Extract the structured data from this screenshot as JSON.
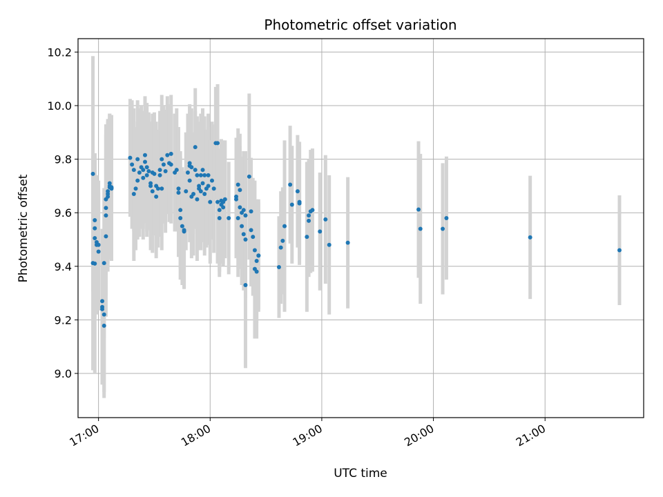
{
  "chart_data": {
    "type": "scatter",
    "title": "Photometric offset variation",
    "xlabel": "UTC time",
    "ylabel": "Photometric offset",
    "x_ticks": [
      "17:00",
      "18:00",
      "19:00",
      "20:00",
      "21:00"
    ],
    "y_ticks": [
      "9.0",
      "9.2",
      "9.4",
      "9.6",
      "9.8",
      "10.0",
      "10.2"
    ],
    "xlim": [
      "16:49",
      "21:53"
    ],
    "ylim": [
      8.835,
      10.25
    ],
    "grid": true,
    "colors": {
      "point": "#1f77b4",
      "errorbar": "#d3d3d3",
      "grid": "#b0b0b0"
    },
    "points": [
      {
        "t": "16:57",
        "y": 9.745,
        "e": 0.44
      },
      {
        "t": "16:57",
        "y": 9.412,
        "e": 0.4
      },
      {
        "t": "16:58",
        "y": 9.41,
        "e": 0.41
      },
      {
        "t": "16:58",
        "y": 9.542,
        "e": 0.28
      },
      {
        "t": "16:58",
        "y": 9.572,
        "e": 0.25
      },
      {
        "t": "16:58",
        "y": 9.505,
        "e": 0.3
      },
      {
        "t": "16:59",
        "y": 9.48,
        "e": 0.26
      },
      {
        "t": "16:59",
        "y": 9.49,
        "e": 0.25
      },
      {
        "t": "17:00",
        "y": 9.48,
        "e": 0.24
      },
      {
        "t": "17:00",
        "y": 9.455,
        "e": 0.22
      },
      {
        "t": "17:02",
        "y": 9.27,
        "e": 0.27
      },
      {
        "t": "17:02",
        "y": 9.24,
        "e": 0.28
      },
      {
        "t": "17:02",
        "y": 9.248,
        "e": 0.29
      },
      {
        "t": "17:03",
        "y": 9.22,
        "e": 0.29
      },
      {
        "t": "17:03",
        "y": 9.178,
        "e": 0.27
      },
      {
        "t": "17:03",
        "y": 9.412,
        "e": 0.28
      },
      {
        "t": "17:04",
        "y": 9.512,
        "e": 0.3
      },
      {
        "t": "17:04",
        "y": 9.59,
        "e": 0.3
      },
      {
        "t": "17:04",
        "y": 9.618,
        "e": 0.29
      },
      {
        "t": "17:04",
        "y": 9.65,
        "e": 0.28
      },
      {
        "t": "17:05",
        "y": 9.66,
        "e": 0.28
      },
      {
        "t": "17:05",
        "y": 9.67,
        "e": 0.27
      },
      {
        "t": "17:05",
        "y": 9.68,
        "e": 0.27
      },
      {
        "t": "17:06",
        "y": 9.695,
        "e": 0.27
      },
      {
        "t": "17:06",
        "y": 9.7,
        "e": 0.27
      },
      {
        "t": "17:06",
        "y": 9.71,
        "e": 0.26
      },
      {
        "t": "17:07",
        "y": 9.695,
        "e": 0.27
      },
      {
        "t": "17:07",
        "y": 9.69,
        "e": 0.27
      },
      {
        "t": "17:17",
        "y": 9.805,
        "e": 0.22
      },
      {
        "t": "17:18",
        "y": 9.78,
        "e": 0.24
      },
      {
        "t": "17:19",
        "y": 9.76,
        "e": 0.23
      },
      {
        "t": "17:19",
        "y": 9.67,
        "e": 0.25
      },
      {
        "t": "17:20",
        "y": 9.69,
        "e": 0.23
      },
      {
        "t": "17:21",
        "y": 9.8,
        "e": 0.22
      },
      {
        "t": "17:21",
        "y": 9.72,
        "e": 0.22
      },
      {
        "t": "17:22",
        "y": 9.75,
        "e": 0.24
      },
      {
        "t": "17:23",
        "y": 9.77,
        "e": 0.23
      },
      {
        "t": "17:24",
        "y": 9.76,
        "e": 0.22
      },
      {
        "t": "17:24",
        "y": 9.73,
        "e": 0.23
      },
      {
        "t": "17:25",
        "y": 9.815,
        "e": 0.22
      },
      {
        "t": "17:25",
        "y": 9.79,
        "e": 0.23
      },
      {
        "t": "17:26",
        "y": 9.77,
        "e": 0.24
      },
      {
        "t": "17:26",
        "y": 9.74,
        "e": 0.23
      },
      {
        "t": "17:27",
        "y": 9.755,
        "e": 0.22
      },
      {
        "t": "17:28",
        "y": 9.71,
        "e": 0.23
      },
      {
        "t": "17:28",
        "y": 9.7,
        "e": 0.24
      },
      {
        "t": "17:29",
        "y": 9.68,
        "e": 0.23
      },
      {
        "t": "17:29",
        "y": 9.75,
        "e": 0.22
      },
      {
        "t": "17:30",
        "y": 9.745,
        "e": 0.23
      },
      {
        "t": "17:31",
        "y": 9.7,
        "e": 0.24
      },
      {
        "t": "17:31",
        "y": 9.66,
        "e": 0.23
      },
      {
        "t": "17:32",
        "y": 9.69,
        "e": 0.22
      },
      {
        "t": "17:33",
        "y": 9.74,
        "e": 0.23
      },
      {
        "t": "17:33",
        "y": 9.76,
        "e": 0.22
      },
      {
        "t": "17:34",
        "y": 9.8,
        "e": 0.24
      },
      {
        "t": "17:34",
        "y": 9.69,
        "e": 0.23
      },
      {
        "t": "17:35",
        "y": 9.78,
        "e": 0.22
      },
      {
        "t": "17:36",
        "y": 9.755,
        "e": 0.23
      },
      {
        "t": "17:37",
        "y": 9.815,
        "e": 0.22
      },
      {
        "t": "17:38",
        "y": 9.785,
        "e": 0.22
      },
      {
        "t": "17:39",
        "y": 9.78,
        "e": 0.22
      },
      {
        "t": "17:39",
        "y": 9.82,
        "e": 0.22
      },
      {
        "t": "17:41",
        "y": 9.75,
        "e": 0.22
      },
      {
        "t": "17:42",
        "y": 9.76,
        "e": 0.23
      },
      {
        "t": "17:43",
        "y": 9.675,
        "e": 0.24
      },
      {
        "t": "17:43",
        "y": 9.69,
        "e": 0.23
      },
      {
        "t": "17:44",
        "y": 9.61,
        "e": 0.22
      },
      {
        "t": "17:44",
        "y": 9.58,
        "e": 0.23
      },
      {
        "t": "17:45",
        "y": 9.55,
        "e": 0.22
      },
      {
        "t": "17:46",
        "y": 9.53,
        "e": 0.21
      },
      {
        "t": "17:46",
        "y": 9.535,
        "e": 0.22
      },
      {
        "t": "17:47",
        "y": 9.68,
        "e": 0.22
      },
      {
        "t": "17:48",
        "y": 9.75,
        "e": 0.22
      },
      {
        "t": "17:49",
        "y": 9.775,
        "e": 0.22
      },
      {
        "t": "17:49",
        "y": 9.785,
        "e": 0.22
      },
      {
        "t": "17:49",
        "y": 9.72,
        "e": 0.23
      },
      {
        "t": "17:50",
        "y": 9.77,
        "e": 0.22
      },
      {
        "t": "17:50",
        "y": 9.66,
        "e": 0.23
      },
      {
        "t": "17:51",
        "y": 9.67,
        "e": 0.23
      },
      {
        "t": "17:52",
        "y": 9.76,
        "e": 0.22
      },
      {
        "t": "17:52",
        "y": 9.845,
        "e": 0.22
      },
      {
        "t": "17:53",
        "y": 9.74,
        "e": 0.22
      },
      {
        "t": "17:53",
        "y": 9.65,
        "e": 0.23
      },
      {
        "t": "17:54",
        "y": 9.7,
        "e": 0.24
      },
      {
        "t": "17:54",
        "y": 9.69,
        "e": 0.23
      },
      {
        "t": "17:55",
        "y": 9.74,
        "e": 0.23
      },
      {
        "t": "17:55",
        "y": 9.68,
        "e": 0.22
      },
      {
        "t": "17:56",
        "y": 9.76,
        "e": 0.23
      },
      {
        "t": "17:56",
        "y": 9.71,
        "e": 0.22
      },
      {
        "t": "17:57",
        "y": 9.74,
        "e": 0.22
      },
      {
        "t": "17:57",
        "y": 9.67,
        "e": 0.23
      },
      {
        "t": "17:58",
        "y": 9.69,
        "e": 0.22
      },
      {
        "t": "17:59",
        "y": 9.74,
        "e": 0.23
      },
      {
        "t": "17:59",
        "y": 9.7,
        "e": 0.22
      },
      {
        "t": "18:00",
        "y": 9.64,
        "e": 0.23
      },
      {
        "t": "18:01",
        "y": 9.72,
        "e": 0.22
      },
      {
        "t": "18:02",
        "y": 9.69,
        "e": 0.24
      },
      {
        "t": "18:03",
        "y": 9.86,
        "e": 0.21
      },
      {
        "t": "18:04",
        "y": 9.86,
        "e": 0.22
      },
      {
        "t": "18:04",
        "y": 9.64,
        "e": 0.23
      },
      {
        "t": "18:05",
        "y": 9.58,
        "e": 0.22
      },
      {
        "t": "18:05",
        "y": 9.61,
        "e": 0.23
      },
      {
        "t": "18:06",
        "y": 9.63,
        "e": 0.22
      },
      {
        "t": "18:06",
        "y": 9.645,
        "e": 0.23
      },
      {
        "t": "18:07",
        "y": 9.62,
        "e": 0.22
      },
      {
        "t": "18:07",
        "y": 9.64,
        "e": 0.23
      },
      {
        "t": "18:08",
        "y": 9.65,
        "e": 0.22
      },
      {
        "t": "18:10",
        "y": 9.58,
        "e": 0.21
      },
      {
        "t": "18:14",
        "y": 9.66,
        "e": 0.22
      },
      {
        "t": "18:14",
        "y": 9.65,
        "e": 0.22
      },
      {
        "t": "18:15",
        "y": 9.705,
        "e": 0.21
      },
      {
        "t": "18:15",
        "y": 9.58,
        "e": 0.22
      },
      {
        "t": "18:16",
        "y": 9.685,
        "e": 0.21
      },
      {
        "t": "18:16",
        "y": 9.62,
        "e": 0.23
      },
      {
        "t": "18:17",
        "y": 9.6,
        "e": 0.21
      },
      {
        "t": "18:17",
        "y": 9.55,
        "e": 0.22
      },
      {
        "t": "18:18",
        "y": 9.61,
        "e": 0.22
      },
      {
        "t": "18:18",
        "y": 9.52,
        "e": 0.21
      },
      {
        "t": "18:19",
        "y": 9.33,
        "e": 0.31
      },
      {
        "t": "18:19",
        "y": 9.5,
        "e": 0.22
      },
      {
        "t": "18:19",
        "y": 9.59,
        "e": 0.24
      },
      {
        "t": "18:21",
        "y": 9.735,
        "e": 0.31
      },
      {
        "t": "18:22",
        "y": 9.605,
        "e": 0.2
      },
      {
        "t": "18:22",
        "y": 9.535,
        "e": 0.21
      },
      {
        "t": "18:23",
        "y": 9.51,
        "e": 0.22
      },
      {
        "t": "18:24",
        "y": 9.46,
        "e": 0.26
      },
      {
        "t": "18:24",
        "y": 9.39,
        "e": 0.26
      },
      {
        "t": "18:25",
        "y": 9.38,
        "e": 0.25
      },
      {
        "t": "18:25",
        "y": 9.42,
        "e": 0.23
      },
      {
        "t": "18:26",
        "y": 9.44,
        "e": 0.21
      },
      {
        "t": "18:26",
        "y": 9.44,
        "e": 0.2
      },
      {
        "t": "18:37",
        "y": 9.397,
        "e": 0.19
      },
      {
        "t": "18:38",
        "y": 9.47,
        "e": 0.21
      },
      {
        "t": "18:39",
        "y": 9.495,
        "e": 0.2
      },
      {
        "t": "18:40",
        "y": 9.55,
        "e": 0.32
      },
      {
        "t": "18:43",
        "y": 9.705,
        "e": 0.22
      },
      {
        "t": "18:44",
        "y": 9.63,
        "e": 0.22
      },
      {
        "t": "18:47",
        "y": 9.68,
        "e": 0.21
      },
      {
        "t": "18:48",
        "y": 9.635,
        "e": 0.23
      },
      {
        "t": "18:48",
        "y": 9.64,
        "e": 0.21
      },
      {
        "t": "18:52",
        "y": 9.51,
        "e": 0.28
      },
      {
        "t": "18:53",
        "y": 9.57,
        "e": 0.21
      },
      {
        "t": "18:53",
        "y": 9.59,
        "e": 0.21
      },
      {
        "t": "18:54",
        "y": 9.605,
        "e": 0.23
      },
      {
        "t": "18:55",
        "y": 9.61,
        "e": 0.23
      },
      {
        "t": "18:59",
        "y": 9.53,
        "e": 0.22
      },
      {
        "t": "19:02",
        "y": 9.575,
        "e": 0.24
      },
      {
        "t": "19:04",
        "y": 9.48,
        "e": 0.26
      },
      {
        "t": "19:14",
        "y": 9.488,
        "e": 0.245
      },
      {
        "t": "19:52",
        "y": 9.612,
        "e": 0.255
      },
      {
        "t": "19:53",
        "y": 9.54,
        "e": 0.28
      },
      {
        "t": "20:05",
        "y": 9.54,
        "e": 0.245
      },
      {
        "t": "20:07",
        "y": 9.58,
        "e": 0.23
      },
      {
        "t": "20:52",
        "y": 9.508,
        "e": 0.23
      },
      {
        "t": "21:40",
        "y": 9.46,
        "e": 0.205
      }
    ]
  }
}
